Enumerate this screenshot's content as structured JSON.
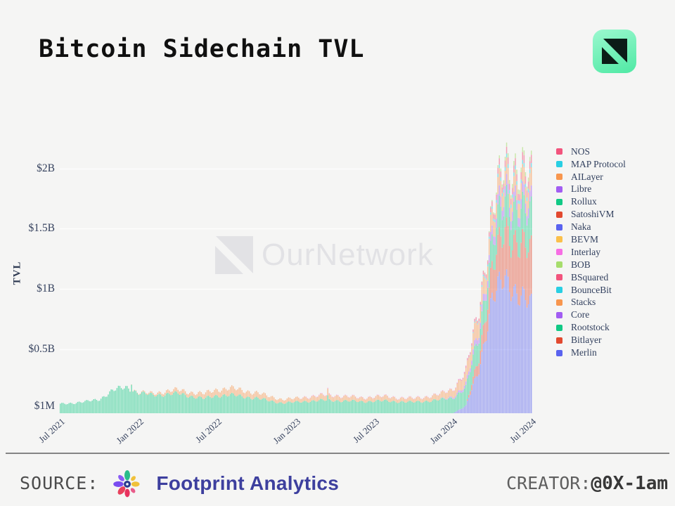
{
  "header": {
    "title": "Bitcoin Sidechain TVL"
  },
  "watermark": {
    "text": "OurNetwork"
  },
  "footer": {
    "source_label": "SOURCE:",
    "source_name": "Footprint Analytics",
    "creator_label": "CREATOR:",
    "creator_handle": "@0X-1am"
  },
  "colors": {
    "background": "#f5f5f4",
    "axis_text": "#37435f",
    "logo_gradient_start": "#9bf8cf",
    "logo_gradient_end": "#4fe9a4",
    "footprint_brand": "#3d3f9e"
  },
  "chart_data": {
    "type": "bar",
    "stacked": true,
    "title": "Bitcoin Sidechain TVL",
    "xlabel": "",
    "ylabel": "TVL",
    "units": "USD billions",
    "ylim_billions": [
      0,
      2.15
    ],
    "grid": "horizontal",
    "legend_position": "right",
    "y_ticks": [
      "$2B",
      "$1.5B",
      "$1B",
      "$0.5B",
      "$1M"
    ],
    "x_ticks": [
      "Jul 2021",
      "Jan 2022",
      "Jul 2022",
      "Jan 2023",
      "Jul 2023",
      "Jan 2024",
      "Jul 2024"
    ],
    "months": [
      "2021-07",
      "2021-08",
      "2021-09",
      "2021-10",
      "2021-11",
      "2021-12",
      "2022-01",
      "2022-02",
      "2022-03",
      "2022-04",
      "2022-05",
      "2022-06",
      "2022-07",
      "2022-08",
      "2022-09",
      "2022-10",
      "2022-11",
      "2022-12",
      "2023-01",
      "2023-02",
      "2023-03",
      "2023-04",
      "2023-05",
      "2023-06",
      "2023-07",
      "2023-08",
      "2023-09",
      "2023-10",
      "2023-11",
      "2023-12",
      "2024-01",
      "2024-02",
      "2024-03",
      "2024-04",
      "2024-05",
      "2024-06",
      "2024-07"
    ],
    "legend": [
      {
        "name": "NOS",
        "color": "#f2547d"
      },
      {
        "name": "MAP Protocol",
        "color": "#29cfe3"
      },
      {
        "name": "AILayer",
        "color": "#f8964e"
      },
      {
        "name": "Libre",
        "color": "#a25df2"
      },
      {
        "name": "Rollux",
        "color": "#11c985"
      },
      {
        "name": "SatoshiVM",
        "color": "#e2492f"
      },
      {
        "name": "Naka",
        "color": "#5a63ef"
      },
      {
        "name": "BEVM",
        "color": "#fbc04b"
      },
      {
        "name": "Interlay",
        "color": "#f76ee4"
      },
      {
        "name": "BOB",
        "color": "#a6dd6c"
      },
      {
        "name": "BSquared",
        "color": "#f2547d"
      },
      {
        "name": "BounceBit",
        "color": "#29cfe3"
      },
      {
        "name": "Stacks",
        "color": "#f8964e"
      },
      {
        "name": "Core",
        "color": "#a25df2"
      },
      {
        "name": "Rootstock",
        "color": "#11c985"
      },
      {
        "name": "Bitlayer",
        "color": "#e2492f"
      },
      {
        "name": "Merlin",
        "color": "#5a63ef"
      }
    ],
    "series": [
      {
        "name": "Merlin",
        "color": "#5a63ef",
        "values": [
          0,
          0,
          0,
          0,
          0,
          0,
          0,
          0,
          0,
          0,
          0,
          0,
          0,
          0,
          0,
          0,
          0,
          0,
          0,
          0,
          0,
          0,
          0,
          0,
          0,
          0,
          0,
          0,
          0,
          0,
          0,
          0.06,
          0.35,
          0.95,
          1.08,
          1.0,
          0.86
        ]
      },
      {
        "name": "Bitlayer",
        "color": "#e2492f",
        "values": [
          0,
          0,
          0,
          0,
          0,
          0,
          0,
          0,
          0,
          0,
          0,
          0,
          0,
          0,
          0,
          0,
          0,
          0,
          0,
          0,
          0,
          0,
          0,
          0,
          0,
          0,
          0,
          0,
          0,
          0,
          0,
          0,
          0.1,
          0.25,
          0.38,
          0.44,
          0.42
        ]
      },
      {
        "name": "Rootstock",
        "color": "#11c985",
        "values": [
          0.075,
          0.085,
          0.095,
          0.115,
          0.185,
          0.215,
          0.165,
          0.15,
          0.155,
          0.16,
          0.14,
          0.12,
          0.145,
          0.15,
          0.135,
          0.125,
          0.1,
          0.085,
          0.09,
          0.1,
          0.105,
          0.105,
          0.1,
          0.095,
          0.1,
          0.1,
          0.095,
          0.09,
          0.1,
          0.11,
          0.125,
          0.15,
          0.18,
          0.21,
          0.24,
          0.28,
          0.28
        ]
      },
      {
        "name": "Core",
        "color": "#a25df2",
        "values": [
          0,
          0,
          0,
          0,
          0,
          0,
          0,
          0,
          0,
          0,
          0,
          0,
          0,
          0,
          0,
          0,
          0,
          0,
          0,
          0,
          0,
          0,
          0,
          0,
          0,
          0,
          0,
          0,
          0,
          0,
          0.01,
          0.025,
          0.05,
          0.07,
          0.08,
          0.08,
          0.08
        ]
      },
      {
        "name": "Stacks",
        "color": "#f8964e",
        "values": [
          0,
          0,
          0,
          0,
          0,
          0,
          0.005,
          0.012,
          0.025,
          0.03,
          0.032,
          0.04,
          0.05,
          0.055,
          0.05,
          0.045,
          0.035,
          0.03,
          0.03,
          0.035,
          0.04,
          0.04,
          0.035,
          0.03,
          0.035,
          0.035,
          0.03,
          0.03,
          0.035,
          0.045,
          0.06,
          0.1,
          0.14,
          0.13,
          0.12,
          0.13,
          0.13
        ]
      },
      {
        "name": "BounceBit",
        "color": "#29cfe3",
        "values": [
          0,
          0,
          0,
          0,
          0,
          0,
          0,
          0,
          0,
          0,
          0,
          0,
          0,
          0,
          0,
          0,
          0,
          0,
          0,
          0,
          0,
          0,
          0,
          0,
          0,
          0,
          0,
          0,
          0,
          0,
          0,
          0,
          0.01,
          0.02,
          0.03,
          0.03,
          0.03
        ]
      },
      {
        "name": "BSquared",
        "color": "#f2547d",
        "values": [
          0,
          0,
          0,
          0,
          0,
          0,
          0,
          0,
          0,
          0,
          0,
          0,
          0,
          0,
          0,
          0,
          0,
          0,
          0,
          0,
          0,
          0,
          0,
          0,
          0,
          0,
          0,
          0,
          0,
          0,
          0,
          0.015,
          0.025,
          0.04,
          0.05,
          0.06,
          0.06
        ]
      },
      {
        "name": "BOB",
        "color": "#a6dd6c",
        "values": [
          0,
          0,
          0,
          0,
          0,
          0,
          0,
          0,
          0,
          0,
          0,
          0,
          0,
          0,
          0,
          0,
          0,
          0,
          0,
          0,
          0,
          0,
          0,
          0,
          0,
          0,
          0,
          0,
          0,
          0,
          0,
          0,
          0,
          0.01,
          0.03,
          0.04,
          0.03
        ]
      },
      {
        "name": "Interlay",
        "color": "#f76ee4",
        "values": [
          0,
          0,
          0,
          0,
          0,
          0,
          0,
          0,
          0,
          0,
          0,
          0,
          0,
          0,
          0,
          0,
          0,
          0,
          0,
          0.004,
          0.004,
          0.004,
          0.003,
          0.003,
          0.003,
          0.003,
          0.003,
          0.003,
          0.003,
          0.003,
          0.004,
          0.004,
          0,
          0,
          0,
          0,
          0
        ]
      }
    ]
  }
}
